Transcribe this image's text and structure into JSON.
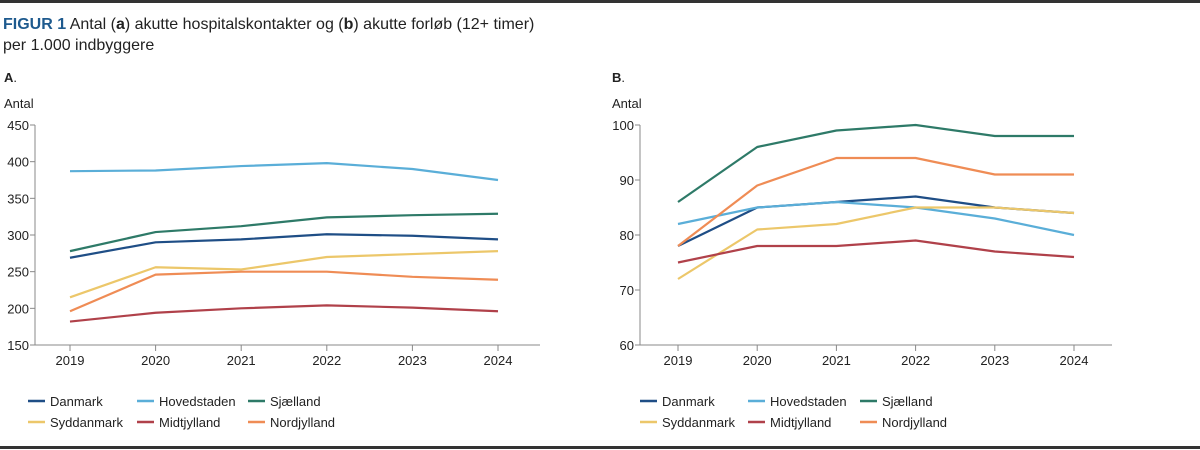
{
  "title": {
    "figure_label": "FIGUR 1",
    "part1": " Antal (",
    "a": "a",
    "part2": ") akutte hospitalskontakter og (",
    "b": "b",
    "part3": ") akutte forløb (12+ timer)",
    "line2": "per 1.000 indbyggere"
  },
  "colors": {
    "title_accent": "#1e5a8e",
    "Danmark": "#1f4e86",
    "Hovedstaden": "#5aaed8",
    "Sjælland": "#2e7a68",
    "Syddanmark": "#ecc76a",
    "Midtjylland": "#b0414a",
    "Nordjylland": "#ef8c55"
  },
  "chart_data": [
    {
      "type": "line",
      "panel_label": "A",
      "ylabel": "Antal",
      "xlabel": "",
      "x": [
        "2019",
        "2020",
        "2021",
        "2022",
        "2023",
        "2024"
      ],
      "ylim": [
        150,
        450
      ],
      "yticks": [
        150,
        200,
        250,
        300,
        350,
        400,
        450
      ],
      "grid": false,
      "legend_position": "bottom",
      "series": [
        {
          "name": "Danmark",
          "values": [
            269,
            290,
            294,
            301,
            299,
            294
          ]
        },
        {
          "name": "Hovedstaden",
          "values": [
            387,
            388,
            394,
            398,
            390,
            375
          ]
        },
        {
          "name": "Sjælland",
          "values": [
            278,
            304,
            312,
            324,
            327,
            329
          ]
        },
        {
          "name": "Syddanmark",
          "values": [
            215,
            256,
            253,
            270,
            274,
            278
          ]
        },
        {
          "name": "Midtjylland",
          "values": [
            182,
            194,
            200,
            204,
            201,
            196
          ]
        },
        {
          "name": "Nordjylland",
          "values": [
            196,
            246,
            250,
            250,
            243,
            239
          ]
        }
      ]
    },
    {
      "type": "line",
      "panel_label": "B",
      "ylabel": "Antal",
      "xlabel": "",
      "x": [
        "2019",
        "2020",
        "2021",
        "2022",
        "2023",
        "2024"
      ],
      "ylim": [
        60,
        100
      ],
      "yticks": [
        60,
        70,
        80,
        90,
        100
      ],
      "grid": false,
      "legend_position": "bottom",
      "series": [
        {
          "name": "Danmark",
          "values": [
            78,
            85,
            86,
            87,
            85,
            84
          ]
        },
        {
          "name": "Hovedstaden",
          "values": [
            82,
            85,
            86,
            85,
            83,
            80
          ]
        },
        {
          "name": "Sjælland",
          "values": [
            86,
            96,
            99,
            100,
            98,
            98
          ]
        },
        {
          "name": "Syddanmark",
          "values": [
            72,
            81,
            82,
            85,
            85,
            84
          ]
        },
        {
          "name": "Midtjylland",
          "values": [
            75,
            78,
            78,
            79,
            77,
            76
          ]
        },
        {
          "name": "Nordjylland",
          "values": [
            78,
            89,
            94,
            94,
            91,
            91
          ]
        }
      ]
    }
  ]
}
